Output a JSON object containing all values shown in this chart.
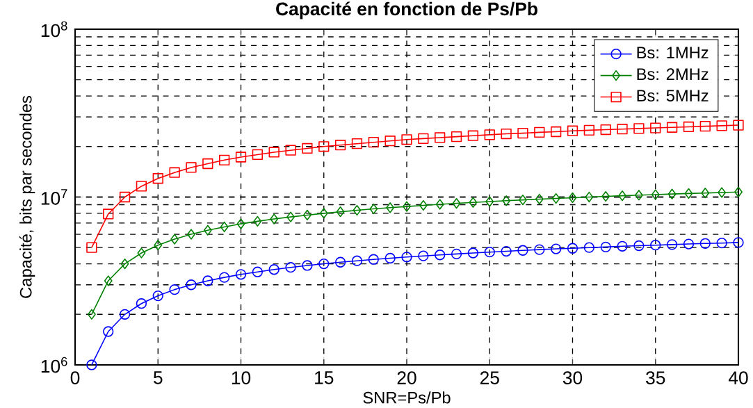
{
  "chart_data": {
    "type": "line",
    "title": "Capacité en fonction de Ps/Pb",
    "xlabel": "SNR=Ps/Pb",
    "ylabel": "Capacité, bits par secondes",
    "x": [
      1,
      2,
      3,
      4,
      5,
      6,
      7,
      8,
      9,
      10,
      11,
      12,
      13,
      14,
      15,
      16,
      17,
      18,
      19,
      20,
      21,
      22,
      23,
      24,
      25,
      26,
      27,
      28,
      29,
      30,
      31,
      32,
      33,
      34,
      35,
      36,
      37,
      38,
      39,
      40
    ],
    "series": [
      {
        "name": "Bs: 1MHz",
        "color": "#0000ff",
        "marker": "circle",
        "values": [
          1000000.0,
          1580000.0,
          2000000.0,
          2320000.0,
          2580000.0,
          2810000.0,
          3000000.0,
          3170000.0,
          3320000.0,
          3460000.0,
          3580000.0,
          3700000.0,
          3810000.0,
          3910000.0,
          4000000.0,
          4090000.0,
          4170000.0,
          4250000.0,
          4320000.0,
          4390000.0,
          4460000.0,
          4520000.0,
          4580000.0,
          4640000.0,
          4700000.0,
          4750000.0,
          4810000.0,
          4860000.0,
          4910000.0,
          4950000.0,
          5000000.0,
          5040000.0,
          5090000.0,
          5130000.0,
          5170000.0,
          5210000.0,
          5250000.0,
          5290000.0,
          5320000.0,
          5360000.0
        ]
      },
      {
        "name": "Bs: 2MHz",
        "color": "#008000",
        "marker": "diamond",
        "values": [
          2000000.0,
          3170000.0,
          4000000.0,
          4640000.0,
          5170000.0,
          5610000.0,
          6000000.0,
          6340000.0,
          6640000.0,
          6920000.0,
          7170000.0,
          7400000.0,
          7610000.0,
          7810000.0,
          8000000.0,
          8170000.0,
          8340000.0,
          8500000.0,
          8640000.0,
          8780000.0,
          8920000.0,
          9050000.0,
          9170000.0,
          9290000.0,
          9400000.0,
          9510000.0,
          9610000.0,
          9720000.0,
          9810000.0,
          9910000.0,
          10000000.0,
          10090000.0,
          10180000.0,
          10260000.0,
          10340000.0,
          10420000.0,
          10500000.0,
          10570000.0,
          10640000.0,
          10720000.0
        ]
      },
      {
        "name": "Bs: 5MHz",
        "color": "#ff0000",
        "marker": "square",
        "values": [
          5000000.0,
          7920000.0,
          10000000.0,
          11600000.0,
          12900000.0,
          14000000.0,
          15000000.0,
          15800000.0,
          16600000.0,
          17300000.0,
          17900000.0,
          18500000.0,
          19000000.0,
          19500000.0,
          20000000.0,
          20400000.0,
          20800000.0,
          21200000.0,
          21600000.0,
          22000000.0,
          22300000.0,
          22600000.0,
          22900000.0,
          23200000.0,
          23500000.0,
          23800000.0,
          24000000.0,
          24300000.0,
          24500000.0,
          24800000.0,
          25000000.0,
          25200000.0,
          25400000.0,
          25600000.0,
          25800000.0,
          26000000.0,
          26200000.0,
          26400000.0,
          26600000.0,
          26800000.0
        ]
      }
    ],
    "xlim": [
      0,
      40
    ],
    "xticks": [
      0,
      5,
      10,
      15,
      20,
      25,
      30,
      35,
      40
    ],
    "ylim": [
      1000000,
      100000000
    ],
    "yticks": [
      {
        "value": 1000000,
        "label": "10$^{6}$"
      },
      {
        "value": 10000000,
        "label": "10$^{7}$"
      },
      {
        "value": 100000000,
        "label": "10$^{8}$"
      }
    ],
    "log": "y",
    "grid": true,
    "legend": "top right",
    "line_style": "solid"
  }
}
